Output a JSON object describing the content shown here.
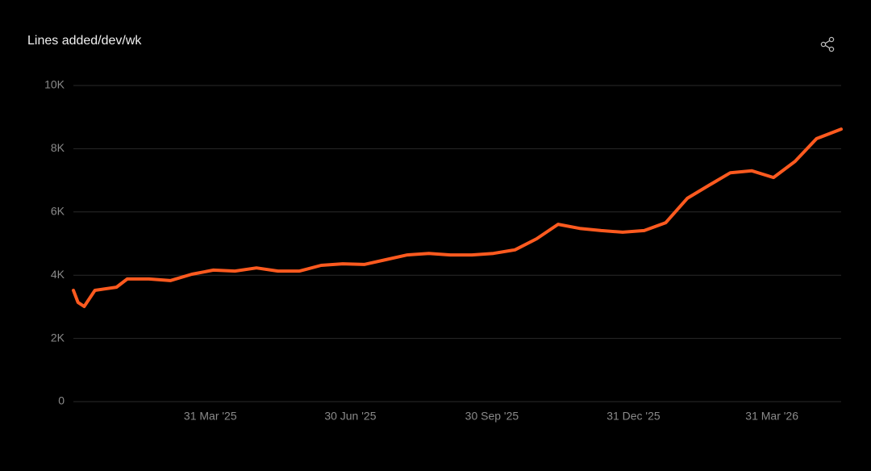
{
  "chart_data": {
    "type": "line",
    "title": "Lines added/dev/wk",
    "x": [
      "2025-01-01",
      "2025-01-04",
      "2025-01-08",
      "2025-01-15",
      "2025-01-29",
      "2025-02-05",
      "2025-02-19",
      "2025-03-05",
      "2025-03-19",
      "2025-04-02",
      "2025-04-16",
      "2025-04-30",
      "2025-05-14",
      "2025-05-28",
      "2025-06-11",
      "2025-06-25",
      "2025-07-09",
      "2025-07-23",
      "2025-08-06",
      "2025-08-20",
      "2025-09-03",
      "2025-09-17",
      "2025-10-01",
      "2025-10-15",
      "2025-10-29",
      "2025-11-12",
      "2025-11-26",
      "2025-12-10",
      "2025-12-24",
      "2026-01-07",
      "2026-01-21",
      "2026-02-04",
      "2026-02-18",
      "2026-03-04",
      "2026-03-18",
      "2026-04-01",
      "2026-04-15",
      "2026-04-29",
      "2026-05-15"
    ],
    "series": [
      {
        "name": "Lines added/dev/wk",
        "color": "#ff5a1f",
        "values": [
          3520,
          3140,
          3010,
          3520,
          3620,
          3880,
          3880,
          3830,
          4030,
          4160,
          4130,
          4230,
          4130,
          4130,
          4310,
          4360,
          4340,
          4490,
          4640,
          4690,
          4640,
          4640,
          4690,
          4800,
          5150,
          5610,
          5480,
          5410,
          5360,
          5410,
          5660,
          6430,
          6840,
          7240,
          7300,
          7090,
          7600,
          8320,
          8620
        ]
      }
    ],
    "xlim": [
      "2025-01-01",
      "2026-05-15"
    ],
    "xticks": [
      {
        "value": "2025-03-31",
        "label": "31 Mar '25"
      },
      {
        "value": "2025-06-30",
        "label": "30 Jun '25"
      },
      {
        "value": "2025-09-30",
        "label": "30 Sep '25"
      },
      {
        "value": "2025-12-31",
        "label": "31 Dec '25"
      },
      {
        "value": "2026-03-31",
        "label": "31 Mar '26"
      }
    ],
    "ylim": [
      0,
      10000
    ],
    "yticks": [
      0,
      {
        "value": 2000,
        "label": "2K"
      },
      {
        "value": 4000,
        "label": "4K"
      },
      {
        "value": 6000,
        "label": "6K"
      },
      {
        "value": 8000,
        "label": "8K"
      },
      {
        "value": 10000,
        "label": "10K"
      }
    ],
    "grid": true
  }
}
